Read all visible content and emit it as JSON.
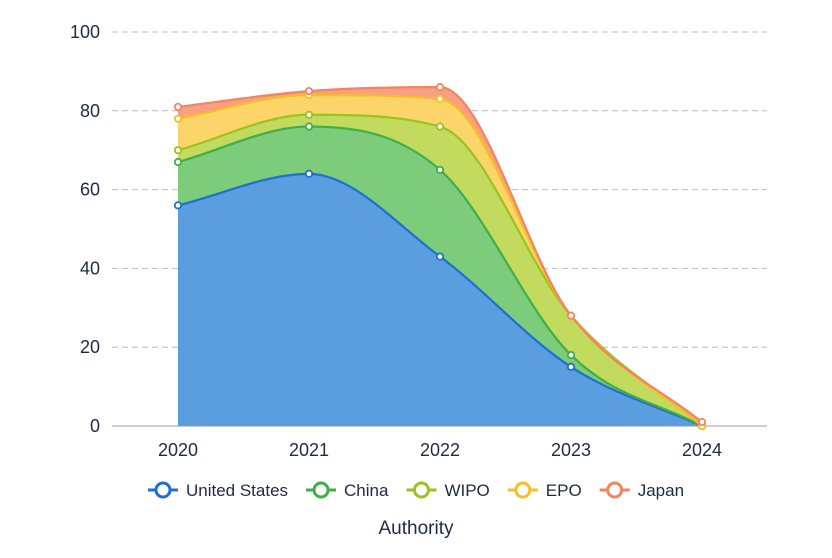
{
  "chart_data": {
    "type": "area",
    "stacked": true,
    "title": "",
    "xlabel": "",
    "ylabel": "",
    "x": [
      "2020",
      "2021",
      "2022",
      "2023",
      "2024"
    ],
    "ylim": [
      0,
      100
    ],
    "yticks": [
      0,
      20,
      40,
      60,
      80,
      100
    ],
    "grid": "horizontal-dashed",
    "legend_title": "Authority",
    "legend_position": "bottom",
    "series": [
      {
        "name": "United States",
        "values": [
          56,
          64,
          43,
          15,
          0
        ],
        "line_color": "#1f6fd1",
        "fill_color": "#5b9ee0"
      },
      {
        "name": "China",
        "values": [
          11,
          12,
          22,
          3,
          0
        ],
        "line_color": "#3fae4a",
        "fill_color": "#7ccc7c"
      },
      {
        "name": "WIPO",
        "values": [
          3,
          3,
          11,
          10,
          0
        ],
        "line_color": "#9cc21e",
        "fill_color": "#c2db5e"
      },
      {
        "name": "EPO",
        "values": [
          8,
          5,
          7,
          0,
          0
        ],
        "line_color": "#f5bf27",
        "fill_color": "#fbd46a"
      },
      {
        "name": "Japan",
        "values": [
          3,
          1,
          3,
          0,
          1
        ],
        "line_color": "#f4845f",
        "fill_color": "#f7a182"
      }
    ]
  }
}
